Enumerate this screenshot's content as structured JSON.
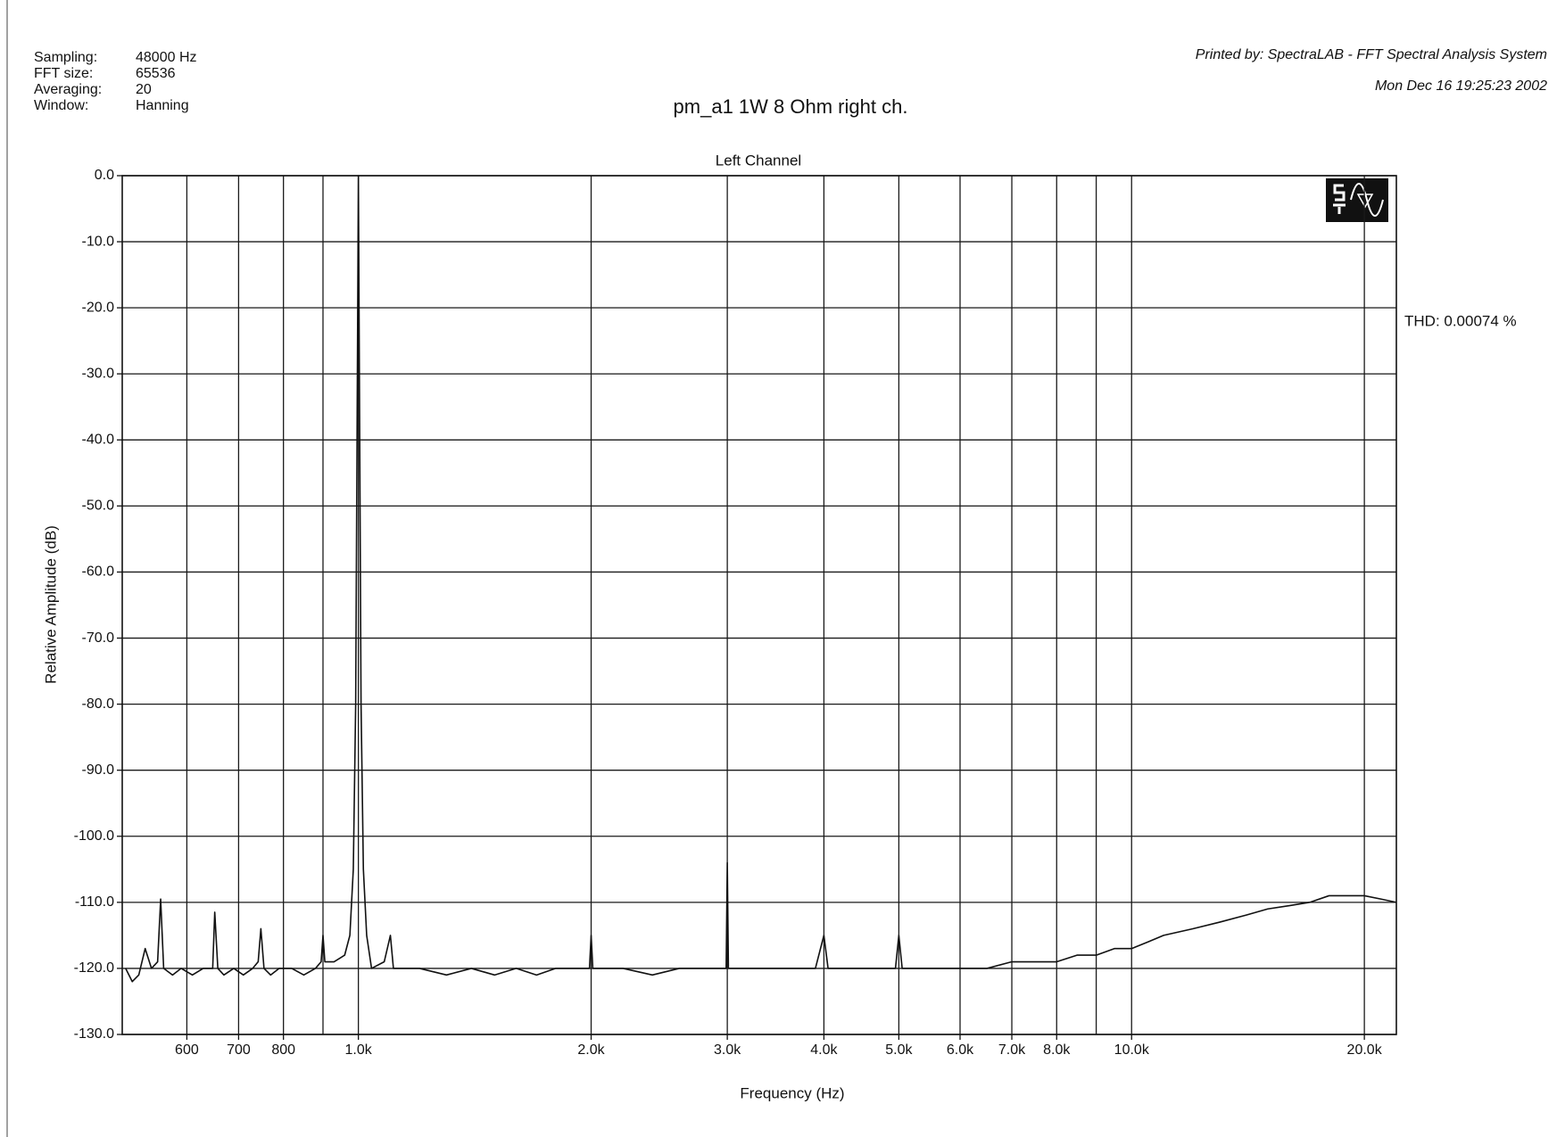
{
  "chart_data": {
    "type": "line",
    "title": "pm_a1 1W 8 Ohm right ch.",
    "subtitle": "Left Channel",
    "printed_by": "Printed by: SpectraLAB - FFT Spectral Analysis System",
    "date": "Mon Dec 16 19:25:23 2002",
    "info": [
      {
        "label": "Sampling:",
        "value": "48000 Hz"
      },
      {
        "label": "FFT size:",
        "value": "65536"
      },
      {
        "label": "Averaging:",
        "value": "20"
      },
      {
        "label": "Window:",
        "value": "Hanning"
      }
    ],
    "annotation": "THD: 0.00074 %",
    "x_label": "Frequency (Hz)",
    "y_label": "Relative Amplitude (dB)",
    "xscale": "log",
    "grid": true,
    "xlim": [
      495,
      22000
    ],
    "ylim": [
      -130,
      0
    ],
    "xticks": [
      600,
      700,
      800,
      {
        "value": 1000,
        "label": "1.0k"
      },
      {
        "value": 2000,
        "label": "2.0k"
      },
      {
        "value": 3000,
        "label": "3.0k"
      },
      {
        "value": 4000,
        "label": "4.0k"
      },
      {
        "value": 5000,
        "label": "5.0k"
      },
      {
        "value": 6000,
        "label": "6.0k"
      },
      {
        "value": 7000,
        "label": "7.0k"
      },
      {
        "value": 8000,
        "label": "8.0k"
      },
      {
        "value": 10000,
        "label": "10.0k"
      },
      {
        "value": 20000,
        "label": "20.0k"
      }
    ],
    "xgrid_minor": [
      900,
      9000
    ],
    "yticks": [
      {
        "value": 0,
        "label": "0.0"
      },
      {
        "value": -10,
        "label": "-10.0"
      },
      {
        "value": -20,
        "label": "-20.0"
      },
      {
        "value": -30,
        "label": "-30.0"
      },
      {
        "value": -40,
        "label": "-40.0"
      },
      {
        "value": -50,
        "label": "-50.0"
      },
      {
        "value": -60,
        "label": "-60.0"
      },
      {
        "value": -70,
        "label": "-70.0"
      },
      {
        "value": -80,
        "label": "-80.0"
      },
      {
        "value": -90,
        "label": "-90.0"
      },
      {
        "value": -100,
        "label": "-100.0"
      },
      {
        "value": -110,
        "label": "-110.0"
      },
      {
        "value": -120,
        "label": "-120.0"
      },
      {
        "value": -130,
        "label": "-130.0"
      }
    ],
    "color": "#111111",
    "x": [
      500,
      510,
      520,
      530,
      540,
      550,
      555,
      560,
      575,
      590,
      610,
      630,
      648,
      652,
      658,
      670,
      690,
      710,
      730,
      742,
      748,
      755,
      770,
      790,
      820,
      850,
      880,
      895,
      900,
      905,
      930,
      960,
      975,
      985,
      992,
      996,
      1000,
      1004,
      1008,
      1015,
      1025,
      1040,
      1080,
      1100,
      1110,
      1200,
      1300,
      1400,
      1500,
      1600,
      1700,
      1800,
      1900,
      1990,
      2000,
      2010,
      2200,
      2400,
      2600,
      2800,
      2990,
      3000,
      3010,
      3300,
      3600,
      3900,
      4000,
      4050,
      4500,
      4950,
      5000,
      5050,
      5500,
      6000,
      6500,
      7000,
      7500,
      8000,
      8500,
      9000,
      9500,
      10000,
      10500,
      11000,
      12000,
      13000,
      14000,
      15000,
      16000,
      17000,
      18000,
      19000,
      20000,
      21000,
      22000
    ],
    "values": [
      -120,
      -122,
      -121,
      -117,
      -120,
      -119,
      -109.5,
      -120,
      -121,
      -120,
      -121,
      -120,
      -120,
      -111.5,
      -120,
      -121,
      -120,
      -121,
      -120,
      -119,
      -114,
      -120,
      -121,
      -120,
      -120,
      -121,
      -120,
      -119,
      -115,
      -119,
      -119,
      -118,
      -115,
      -105,
      -80,
      -40,
      0,
      -40,
      -80,
      -105,
      -115,
      -120,
      -119,
      -115,
      -120,
      -120,
      -121,
      -120,
      -121,
      -120,
      -121,
      -120,
      -120,
      -120,
      -115,
      -120,
      -120,
      -121,
      -120,
      -120,
      -120,
      -104,
      -120,
      -120,
      -120,
      -120,
      -115,
      -120,
      -120,
      -120,
      -115,
      -120,
      -120,
      -120,
      -120,
      -119,
      -119,
      -119,
      -118,
      -118,
      -117,
      -117,
      -116,
      -115,
      -114,
      -113,
      -112,
      -111,
      -110.5,
      -110,
      -109,
      -109,
      -109,
      -109.5,
      -110
    ]
  }
}
